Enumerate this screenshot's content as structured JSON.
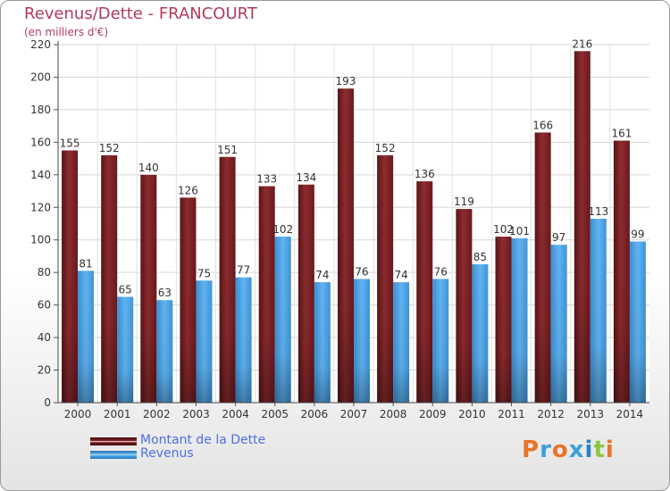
{
  "header": {
    "title": "Revenus/Dette - FRANCOURT",
    "subtitle": "(en milliers d'€)"
  },
  "chart_data": {
    "type": "bar",
    "categories": [
      "2000",
      "2001",
      "2002",
      "2003",
      "2004",
      "2005",
      "2006",
      "2007",
      "2008",
      "2009",
      "2010",
      "2011",
      "2012",
      "2013",
      "2014"
    ],
    "series": [
      {
        "name": "Montant de la Dette",
        "values": [
          155,
          152,
          140,
          126,
          151,
          133,
          134,
          193,
          152,
          136,
          119,
          102,
          166,
          216,
          161
        ],
        "color": "#7b2226"
      },
      {
        "name": "Revenus",
        "values": [
          81,
          65,
          63,
          75,
          77,
          102,
          74,
          76,
          74,
          76,
          85,
          101,
          97,
          113,
          99
        ],
        "color": "#4aa0e0"
      }
    ],
    "ylim": [
      0,
      220
    ],
    "yticks": [
      0,
      20,
      40,
      60,
      80,
      100,
      120,
      140,
      160,
      180,
      200,
      220
    ],
    "grid": true,
    "legend": "bottom-left"
  },
  "logo": {
    "text": "Proxiti",
    "letter_colors": [
      "#e8742a",
      "#3aa0d8",
      "#e8742a",
      "#3aa0d8",
      "#2a7fc8",
      "#8cc63f",
      "#e8742a"
    ]
  }
}
